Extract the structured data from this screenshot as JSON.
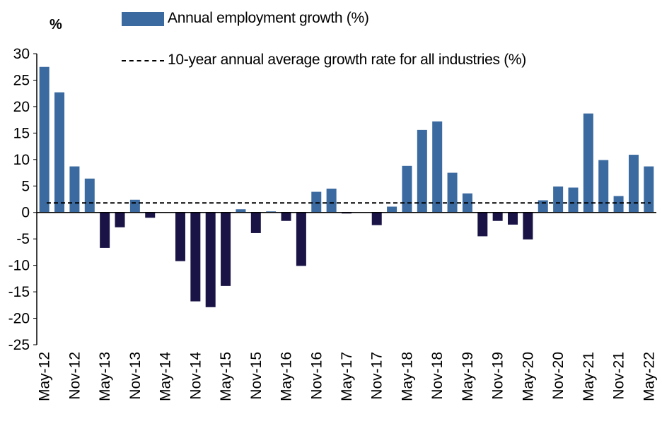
{
  "chart_data": {
    "type": "bar",
    "ylabel": "%",
    "ylim": [
      -25,
      30
    ],
    "yticks": [
      30,
      25,
      20,
      15,
      10,
      5,
      0,
      -5,
      -10,
      -15,
      -20,
      -25
    ],
    "grid": false,
    "legend_placement": "top",
    "colors": {
      "positive": "#3a6aa0",
      "negative": "#1a1446",
      "average_line": "#000000"
    },
    "categories": [
      "May-12",
      "Aug-12",
      "Nov-12",
      "Feb-13",
      "May-13",
      "Aug-13",
      "Nov-13",
      "Feb-14",
      "May-14",
      "Aug-14",
      "Nov-14",
      "Feb-15",
      "May-15",
      "Aug-15",
      "Nov-15",
      "Feb-16",
      "May-16",
      "Aug-16",
      "Nov-16",
      "Feb-17",
      "May-17",
      "Aug-17",
      "Nov-17",
      "Feb-18",
      "May-18",
      "Aug-18",
      "Nov-18",
      "Feb-19",
      "May-19",
      "Aug-19",
      "Nov-19",
      "Feb-20",
      "May-20",
      "Aug-20",
      "Nov-20",
      "Feb-21",
      "May-21",
      "Aug-21",
      "Nov-21",
      "Feb-22",
      "May-22"
    ],
    "tick_labels": [
      "May-12",
      "Nov-12",
      "May-13",
      "Nov-13",
      "May-14",
      "Nov-14",
      "May-15",
      "Nov-15",
      "May-16",
      "Nov-16",
      "May-17",
      "Nov-17",
      "May-18",
      "Nov-18",
      "May-19",
      "Nov-19",
      "May-20",
      "Nov-20",
      "May-21",
      "Nov-21",
      "May-22"
    ],
    "series": [
      {
        "name": "Annual employment growth (%)",
        "type": "bar",
        "values": [
          27.5,
          22.7,
          8.7,
          6.4,
          -6.7,
          -2.8,
          2.4,
          -1.0,
          -0.1,
          -9.2,
          -16.8,
          -17.9,
          -13.9,
          0.6,
          -3.9,
          0.2,
          -1.6,
          -10.1,
          3.9,
          4.5,
          -0.2,
          0.0,
          -2.4,
          1.1,
          8.8,
          15.6,
          17.2,
          7.5,
          3.6,
          -4.5,
          -1.6,
          -2.3,
          -5.1,
          2.3,
          4.9,
          4.7,
          18.7,
          9.9,
          3.1,
          10.9,
          8.7
        ]
      },
      {
        "name": "10-year annual average growth rate for all industries (%)",
        "type": "line",
        "style": "dashed",
        "value": 1.8
      }
    ]
  }
}
